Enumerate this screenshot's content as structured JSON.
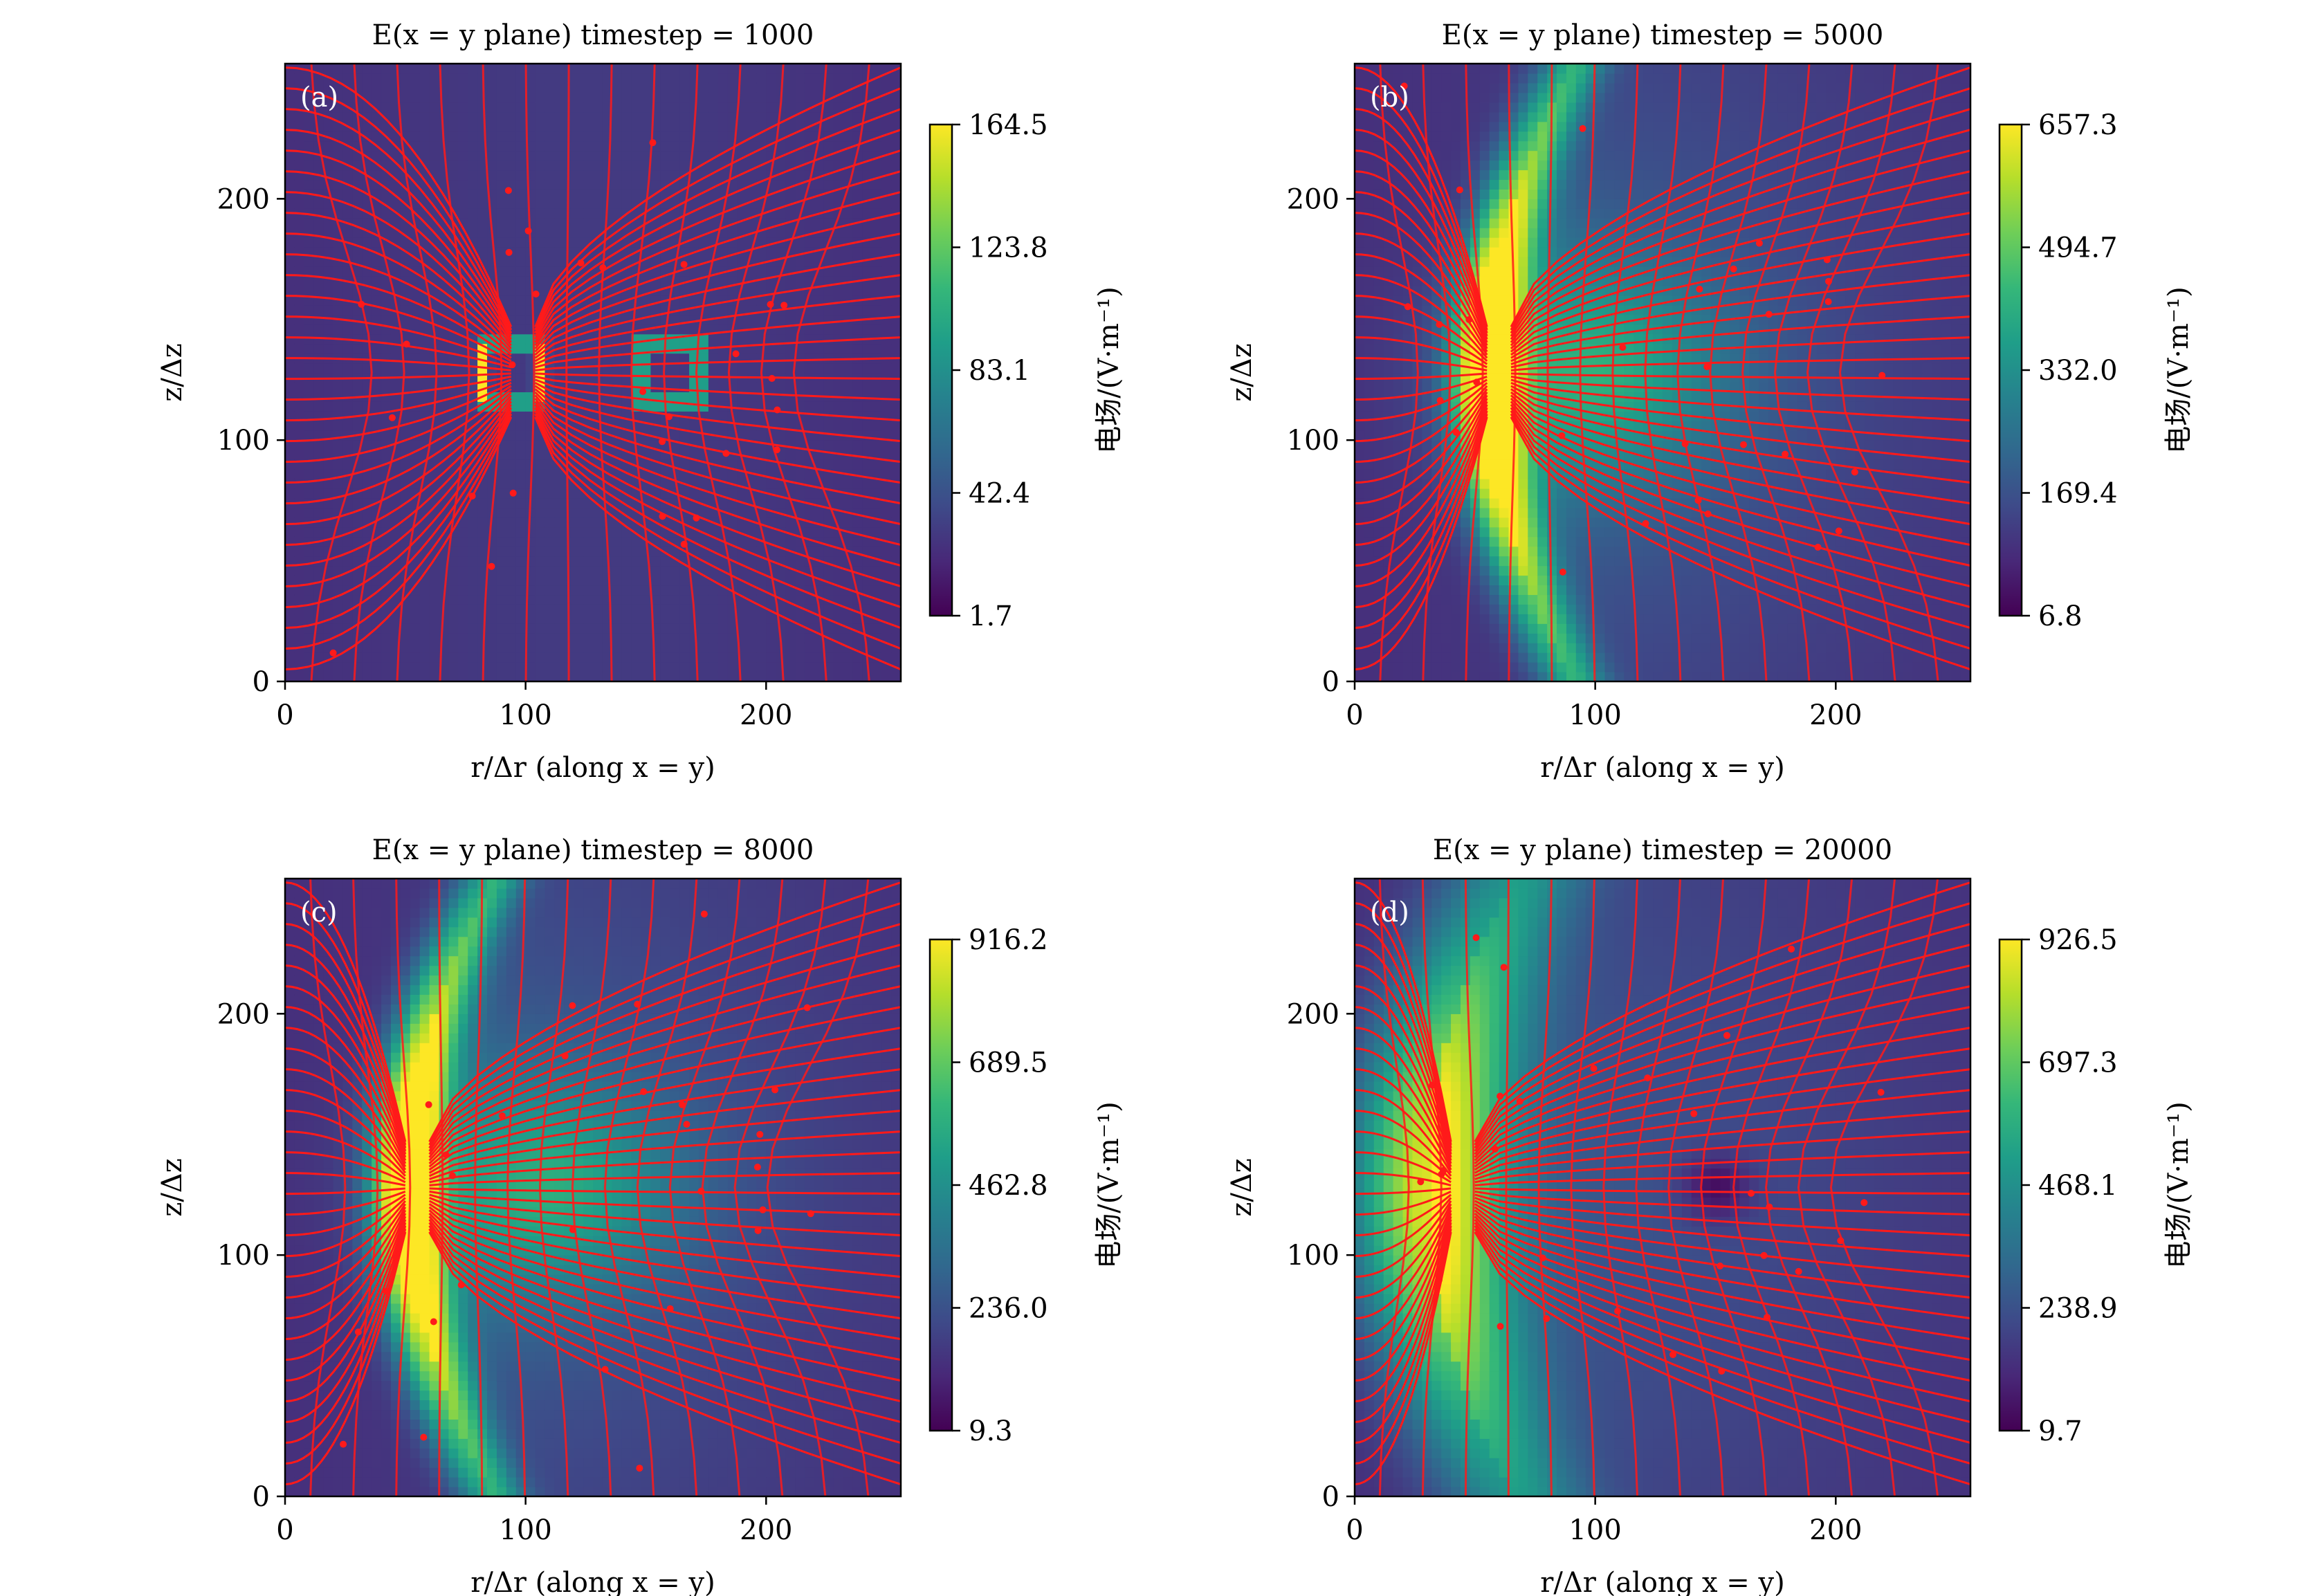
{
  "figure": {
    "panels": [
      {
        "label": "(a)",
        "title": "E(x = y plane) timestep = 1000",
        "xlabel": "r/Δr (along x = y)",
        "ylabel": "z/Δz",
        "colorbar_label": "电场/(V·m⁻¹)",
        "colorbar_ticks": [
          "164.5",
          "123.8",
          "83.1",
          "42.4",
          "1.7"
        ]
      },
      {
        "label": "(b)",
        "title": "E(x = y plane) timestep = 5000",
        "xlabel": "r/Δr (along x = y)",
        "ylabel": "z/Δz",
        "colorbar_label": "电场/(V·m⁻¹)",
        "colorbar_ticks": [
          "657.3",
          "494.7",
          "332.0",
          "169.4",
          "6.8"
        ]
      },
      {
        "label": "(c)",
        "title": "E(x = y plane) timestep = 8000",
        "xlabel": "r/Δr (along x = y)",
        "ylabel": "z/Δz",
        "colorbar_label": "电场/(V·m⁻¹)",
        "colorbar_ticks": [
          "916.2",
          "689.5",
          "462.8",
          "236.0",
          "9.3"
        ]
      },
      {
        "label": "(d)",
        "title": "E(x = y plane) timestep = 20000",
        "xlabel": "r/Δr (along x = y)",
        "ylabel": "z/Δz",
        "colorbar_label": "电场/(V·m⁻¹)",
        "colorbar_ticks": [
          "926.5",
          "697.3",
          "468.1",
          "238.9",
          "9.7"
        ]
      }
    ],
    "x_ticks": [
      "0",
      "100",
      "200"
    ],
    "y_ticks": [
      "0",
      "100",
      "200"
    ],
    "streamline_color": "#ff1a1a",
    "colormap": "viridis"
  },
  "chart_data": [
    {
      "type": "heatmap",
      "title": "E(x = y plane) timestep = 1000",
      "xlabel": "r/Δr (along x = y)",
      "ylabel": "z/Δz",
      "xlim": [
        0,
        256
      ],
      "ylim": [
        0,
        256
      ],
      "colorbar_label": "电场/(V·m⁻¹)",
      "colorbar_range": [
        1.7,
        164.5
      ],
      "features": [
        {
          "shape": "square-ring",
          "center_r": 94,
          "center_z": 128,
          "half_size": 12,
          "level": 0.9
        },
        {
          "shape": "square-ring",
          "center_r": 160,
          "center_z": 128,
          "half_size": 12,
          "level": 0.9
        }
      ],
      "overlay": "red streamlines"
    },
    {
      "type": "heatmap",
      "title": "E(x = y plane) timestep = 5000",
      "xlabel": "r/Δr (along x = y)",
      "ylabel": "z/Δz",
      "xlim": [
        0,
        256
      ],
      "ylim": [
        0,
        256
      ],
      "colorbar_label": "电场/(V·m⁻¹)",
      "colorbar_range": [
        6.8,
        657.3
      ],
      "features": [
        {
          "shape": "front",
          "r_at_center": 55,
          "center_z": 128,
          "width": 14,
          "level": 1.0
        },
        {
          "shape": "blob",
          "center_r": 100,
          "center_z": 128,
          "level": 0.35
        }
      ],
      "overlay": "red streamlines"
    },
    {
      "type": "heatmap",
      "title": "E(x = y plane) timestep = 8000",
      "xlabel": "r/Δr (along x = y)",
      "ylabel": "z/Δz",
      "xlim": [
        0,
        256
      ],
      "ylim": [
        0,
        256
      ],
      "colorbar_label": "电场/(V·m⁻¹)",
      "colorbar_range": [
        9.3,
        916.2
      ],
      "features": [
        {
          "shape": "front",
          "r_at_center": 50,
          "center_z": 128,
          "width": 14,
          "level": 1.0
        },
        {
          "shape": "blob",
          "center_r": 110,
          "center_z": 128,
          "level": 0.35
        }
      ],
      "overlay": "red streamlines"
    },
    {
      "type": "heatmap",
      "title": "E(x = y plane) timestep = 20000",
      "xlabel": "r/Δr (along x = y)",
      "ylabel": "z/Δz",
      "xlim": [
        0,
        256
      ],
      "ylim": [
        0,
        256
      ],
      "colorbar_label": "电场/(V·m⁻¹)",
      "colorbar_range": [
        9.7,
        926.5
      ],
      "features": [
        {
          "shape": "front",
          "r_at_center": 30,
          "center_z": 128,
          "width": 30,
          "level": 0.8
        },
        {
          "shape": "dark-spot",
          "center_r": 150,
          "center_z": 128,
          "level": 0.05
        }
      ],
      "overlay": "red streamlines"
    }
  ]
}
